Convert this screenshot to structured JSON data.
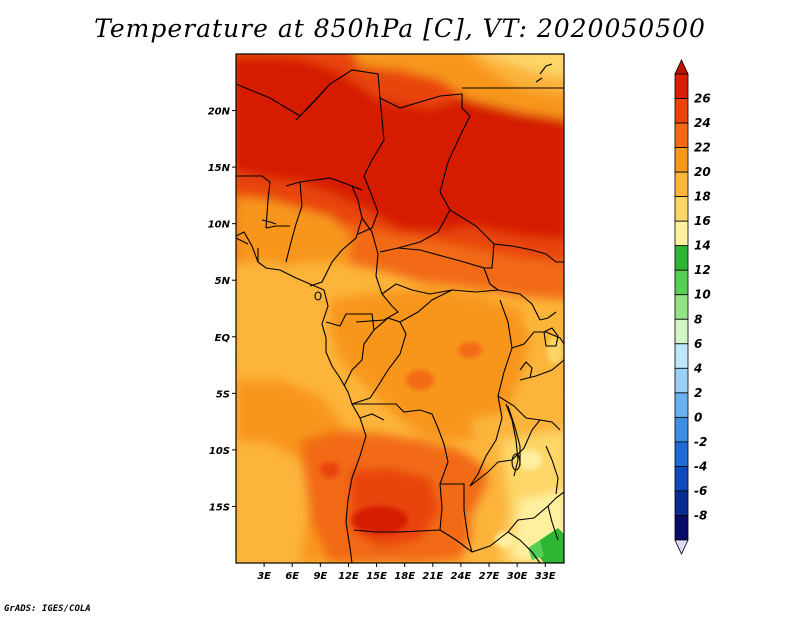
{
  "title": "Temperature at 850hPa [C], VT: 2020050500",
  "credit": "GrADS: IGES/COLA",
  "map": {
    "lon_range": [
      0,
      35
    ],
    "lat_range": [
      -20,
      25
    ],
    "lon_ticks": [
      {
        "value": 3,
        "label": "3E"
      },
      {
        "value": 6,
        "label": "6E"
      },
      {
        "value": 9,
        "label": "9E"
      },
      {
        "value": 12,
        "label": "12E"
      },
      {
        "value": 15,
        "label": "15E"
      },
      {
        "value": 18,
        "label": "18E"
      },
      {
        "value": 21,
        "label": "21E"
      },
      {
        "value": 24,
        "label": "24E"
      },
      {
        "value": 27,
        "label": "27E"
      },
      {
        "value": 30,
        "label": "30E"
      },
      {
        "value": 33,
        "label": "33E"
      }
    ],
    "lat_ticks": [
      {
        "value": 20,
        "label": "20N"
      },
      {
        "value": 15,
        "label": "15N"
      },
      {
        "value": 10,
        "label": "10N"
      },
      {
        "value": 5,
        "label": "5N"
      },
      {
        "value": 0,
        "label": "EQ"
      },
      {
        "value": -5,
        "label": "5S"
      },
      {
        "value": -10,
        "label": "10S"
      },
      {
        "value": -15,
        "label": "15S"
      }
    ]
  },
  "colorbar": {
    "levels": [
      {
        "label": "26",
        "color": "#d61e00"
      },
      {
        "label": "24",
        "color": "#e8440a"
      },
      {
        "label": "22",
        "color": "#f26a12"
      },
      {
        "label": "20",
        "color": "#f8961e"
      },
      {
        "label": "18",
        "color": "#fcb43a"
      },
      {
        "label": "16",
        "color": "#fdd668"
      },
      {
        "label": "14",
        "color": "#fff0a0"
      },
      {
        "label": "12",
        "color": "#2fb534"
      },
      {
        "label": "10",
        "color": "#57cf55"
      },
      {
        "label": "8",
        "color": "#91e383"
      },
      {
        "label": "6",
        "color": "#d2f6c6"
      },
      {
        "label": "4",
        "color": "#bfe6fa"
      },
      {
        "label": "2",
        "color": "#9bd0f6"
      },
      {
        "label": "0",
        "color": "#6ab1ef"
      },
      {
        "label": "-2",
        "color": "#3d8fe6"
      },
      {
        "label": "-4",
        "color": "#1f6cd8"
      },
      {
        "label": "-6",
        "color": "#0f4bbe"
      },
      {
        "label": "-8",
        "color": "#082c94"
      },
      {
        "label": "",
        "color": "#0a0a6a"
      }
    ],
    "top_color": "#bb1400",
    "bottom_color": "#dcdcf4"
  }
}
